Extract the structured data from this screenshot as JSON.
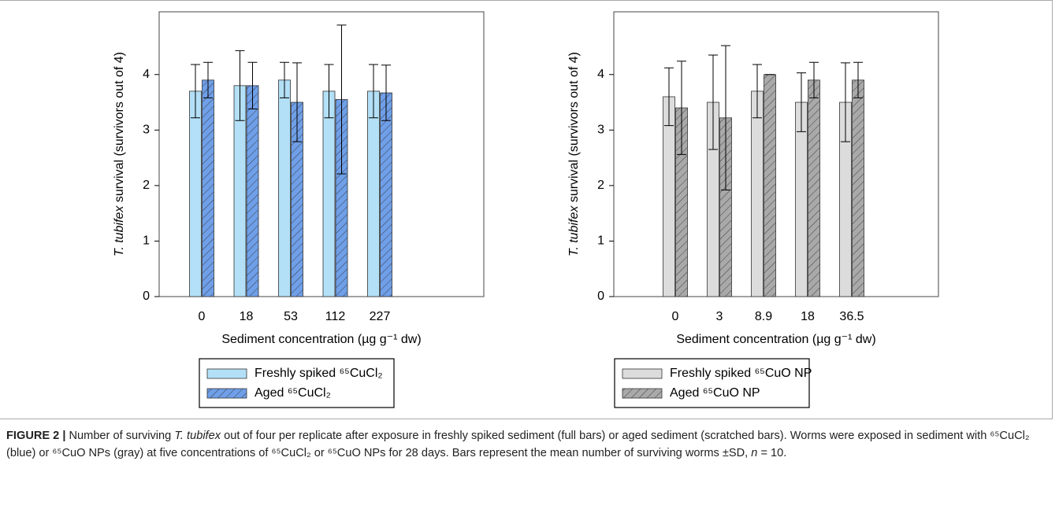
{
  "chart_data": [
    {
      "type": "bar",
      "ylabel": [
        "T. tubifex",
        " survival (survivors out of 4)"
      ],
      "xlabel": "Sediment concentration (µg g⁻¹ dw)",
      "categories": [
        "0",
        "18",
        "53",
        "112",
        "227"
      ],
      "series": [
        {
          "name": "Freshly spiked ⁶⁵CuCl₂",
          "color": "#b3e0f7",
          "hatch": false,
          "values": [
            3.7,
            3.8,
            3.9,
            3.7,
            3.7
          ],
          "errors": [
            0.48,
            0.63,
            0.32,
            0.48,
            0.48
          ]
        },
        {
          "name": "Aged ⁶⁵CuCl₂",
          "color": "#6f9fe8",
          "hatch": true,
          "values": [
            3.9,
            3.8,
            3.5,
            3.55,
            3.67
          ],
          "errors": [
            0.32,
            0.42,
            0.71,
            1.34,
            0.5
          ]
        }
      ],
      "ylim": [
        0,
        5.13
      ],
      "yticks": [
        0,
        1,
        2,
        3,
        4
      ]
    },
    {
      "type": "bar",
      "ylabel": [
        "T. tubifex",
        " survival (survivors out of 4)"
      ],
      "xlabel": "Sediment concentration (µg g⁻¹ dw)",
      "categories": [
        "0",
        "3",
        "8.9",
        "18",
        "36.5"
      ],
      "series": [
        {
          "name": "Freshly spiked ⁶⁵CuO NP",
          "color": "#dcdcdc",
          "hatch": false,
          "values": [
            3.6,
            3.5,
            3.7,
            3.5,
            3.5
          ],
          "errors": [
            0.52,
            0.85,
            0.48,
            0.53,
            0.71
          ]
        },
        {
          "name": "Aged ⁶⁵CuO NP",
          "color": "#a9a9a9",
          "hatch": true,
          "values": [
            3.4,
            3.22,
            4.0,
            3.9,
            3.9
          ],
          "errors": [
            0.84,
            1.3,
            0,
            0.32,
            0.32
          ]
        }
      ],
      "ylim": [
        0,
        5.13
      ],
      "yticks": [
        0,
        1,
        2,
        3,
        4
      ]
    }
  ],
  "caption": [
    {
      "text": "FIGURE 2 |",
      "bold": true
    },
    {
      "text": " Number of surviving "
    },
    {
      "text": "T. tubifex",
      "italic": true
    },
    {
      "text": " out of four per replicate after exposure in freshly spiked sediment (full bars) or aged sediment (scratched bars). Worms were exposed in sediment with ⁶⁵CuCl₂ (blue) or ⁶⁵CuO NPs (gray) at five concentrations of ⁶⁵CuCl₂ or ⁶⁵CuO NPs for 28 days. Bars represent the mean number of surviving worms ±SD, "
    },
    {
      "text": "n",
      "italic": true
    },
    {
      "text": " = 10."
    }
  ]
}
